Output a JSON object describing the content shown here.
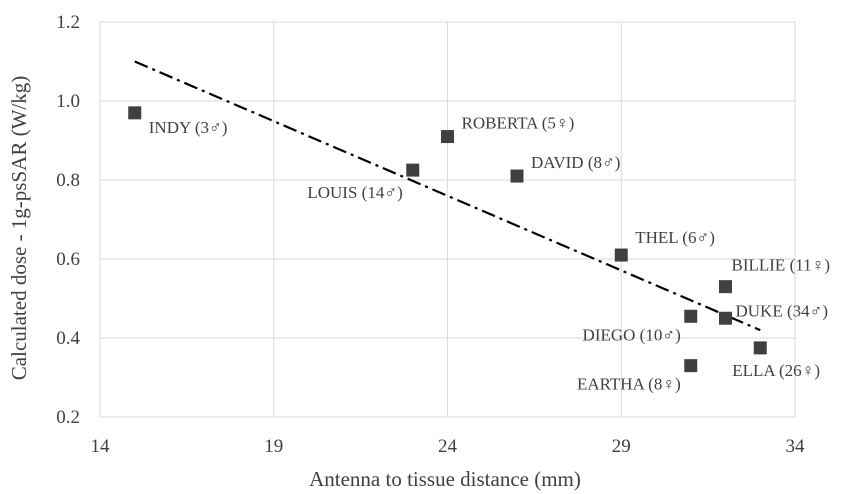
{
  "chart_data": {
    "type": "scatter",
    "xlabel": "Antenna to tissue distance (mm)",
    "ylabel": "Calculated dose - 1g-psSAR (W/kg)",
    "xlim": [
      14,
      34
    ],
    "ylim": [
      0.2,
      1.2
    ],
    "xticks": [
      14,
      19,
      24,
      29,
      34
    ],
    "yticks": [
      0.2,
      0.4,
      0.6,
      0.8,
      1.0,
      1.2
    ],
    "xtick_labels": [
      "14",
      "19",
      "24",
      "29",
      "34"
    ],
    "ytick_labels": [
      "0.2",
      "0.4",
      "0.6",
      "0.8",
      "1.0",
      "1.2"
    ],
    "grid": true,
    "marker_color": "#404040",
    "points": [
      {
        "label": "INDY (3♂)",
        "x": 15,
        "y": 0.97
      },
      {
        "label": "LOUIS (14♂)",
        "x": 23,
        "y": 0.825
      },
      {
        "label": "ROBERTA (5♀)",
        "x": 24,
        "y": 0.91
      },
      {
        "label": "DAVID (8♂)",
        "x": 26,
        "y": 0.81
      },
      {
        "label": "THEL (6♂)",
        "x": 29,
        "y": 0.61
      },
      {
        "label": "BILLIE (11♀)",
        "x": 32,
        "y": 0.53
      },
      {
        "label": "DUKE (34♂)",
        "x": 32,
        "y": 0.45
      },
      {
        "label": "DIEGO (10♂)",
        "x": 31,
        "y": 0.455
      },
      {
        "label": "ELLA (26♀)",
        "x": 33,
        "y": 0.375
      },
      {
        "label": "EARTHA (8♀)",
        "x": 31,
        "y": 0.33
      }
    ],
    "trendline": {
      "style": "dash-dot",
      "color": "#000000",
      "x": [
        15,
        33
      ],
      "y": [
        1.1,
        0.42
      ]
    }
  }
}
